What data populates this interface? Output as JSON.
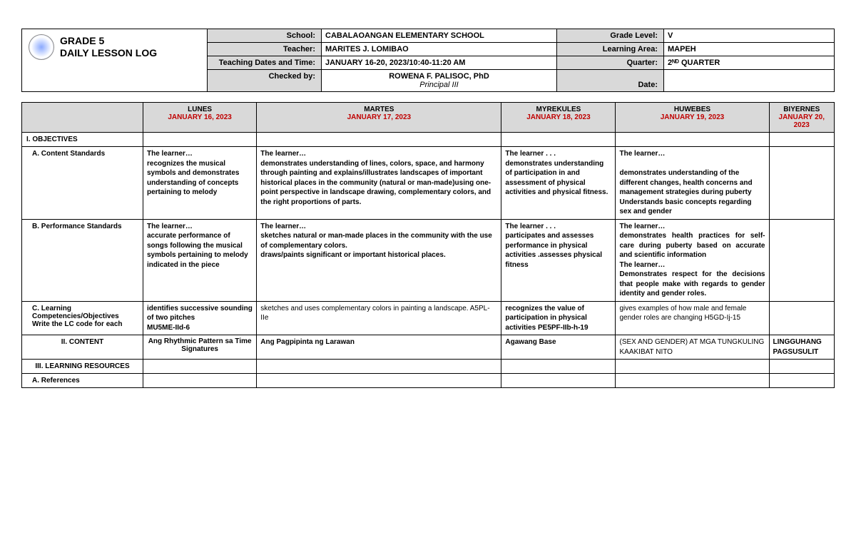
{
  "title": {
    "line1": "GRADE 5",
    "line2": "DAILY LESSON LOG"
  },
  "header": {
    "school_lbl": "School:",
    "school_val": "CABALAOANGAN ELEMENTARY SCHOOL",
    "grade_lbl": "Grade Level:",
    "grade_val": "V",
    "teacher_lbl": "Teacher:",
    "teacher_val": "MARITES J. LOMIBAO",
    "area_lbl": "Learning Area:",
    "area_val": "MAPEH",
    "dates_lbl": "Teaching Dates and Time:",
    "dates_val": "JANUARY 16-20, 2023/10:40-11:20 AM",
    "quarter_lbl": "Quarter:",
    "quarter_val": "2ᴺᴰ QUARTER",
    "checked_lbl": "Checked by:",
    "checked_name": "ROWENA F. PALISOC, PhD",
    "checked_title": "Principal III",
    "date_lbl": "Date:",
    "date_val": ""
  },
  "days": {
    "mon_name": "LUNES",
    "mon_date": "JANUARY 16, 2023",
    "tue_name": "MARTES",
    "tue_date": "JANUARY 17, 2023",
    "wed_name": "MYREKULES",
    "wed_date": "JANUARY 18, 2023",
    "thu_name": "HUWEBES",
    "thu_date": "JANUARY 19, 2023",
    "fri_name": "BIYERNES",
    "fri_date": "JANUARY 20, 2023"
  },
  "rows": {
    "objectives": "I.        OBJECTIVES",
    "a_content": "A.   Content Standards",
    "b_perf": "B.   Performance Standards",
    "c_comp": "C.   Learning Competencies/Objectives Write the LC code for each",
    "ii_content": "II.        CONTENT",
    "iii_res": "III.        LEARNING RESOURCES",
    "a_ref": "A.   References"
  },
  "content_std": {
    "mon": "The learner…\nrecognizes the musical symbols and demonstrates understanding of concepts pertaining to melody",
    "tue": "The learner…\ndemonstrates understanding of lines, colors, space, and harmony through painting and explains/illustrates landscapes of important historical places in the community (natural or man-made)using one-point perspective in landscape drawing, complementary colors, and the right proportions of parts.",
    "wed": "The learner . . .\ndemonstrates understanding of participation in and assessment of physical activities and physical fitness.",
    "thu": "The learner…\n\ndemonstrates understanding of the different changes, health concerns and management strategies during puberty Understands basic concepts regarding sex and gender",
    "fri": ""
  },
  "perf_std": {
    "mon": "The learner…\naccurate performance of songs following the musical symbols pertaining to melody indicated in the piece",
    "tue": "The learner…\nsketches natural or man-made places in the community with the use of complementary colors.\ndraws/paints significant or important historical places.",
    "wed": "The learner . . .\nparticipates and assesses performance in physical activities .assesses physical fitness",
    "thu": "The learner…\ndemonstrates health practices for self-care during puberty based on accurate and scientific information\nThe learner…\nDemonstrates respect for the decisions that people make with regards to gender identity and gender roles.",
    "fri": ""
  },
  "competencies": {
    "mon": "identifies successive sounding of two pitches\nMU5ME-IId-6",
    "tue": "sketches and uses complementary colors in painting a landscape.  A5PL-IIe",
    "wed": "recognizes the value of participation in physical activities PE5PF-IIb-h-19",
    "thu": "gives examples of how male and female gender roles are changing  H5GD-Ij-15",
    "fri": ""
  },
  "content2": {
    "mon": "Ang Rhythmic Pattern sa Time Signatures",
    "tue": "Ang Pagpipinta ng Larawan",
    "wed": "Agawang Base",
    "thu": "(SEX AND GENDER)  AT MGA TUNGKULING KAAKIBAT NITO",
    "fri": "LINGGUHANG PAGSUSULIT"
  }
}
